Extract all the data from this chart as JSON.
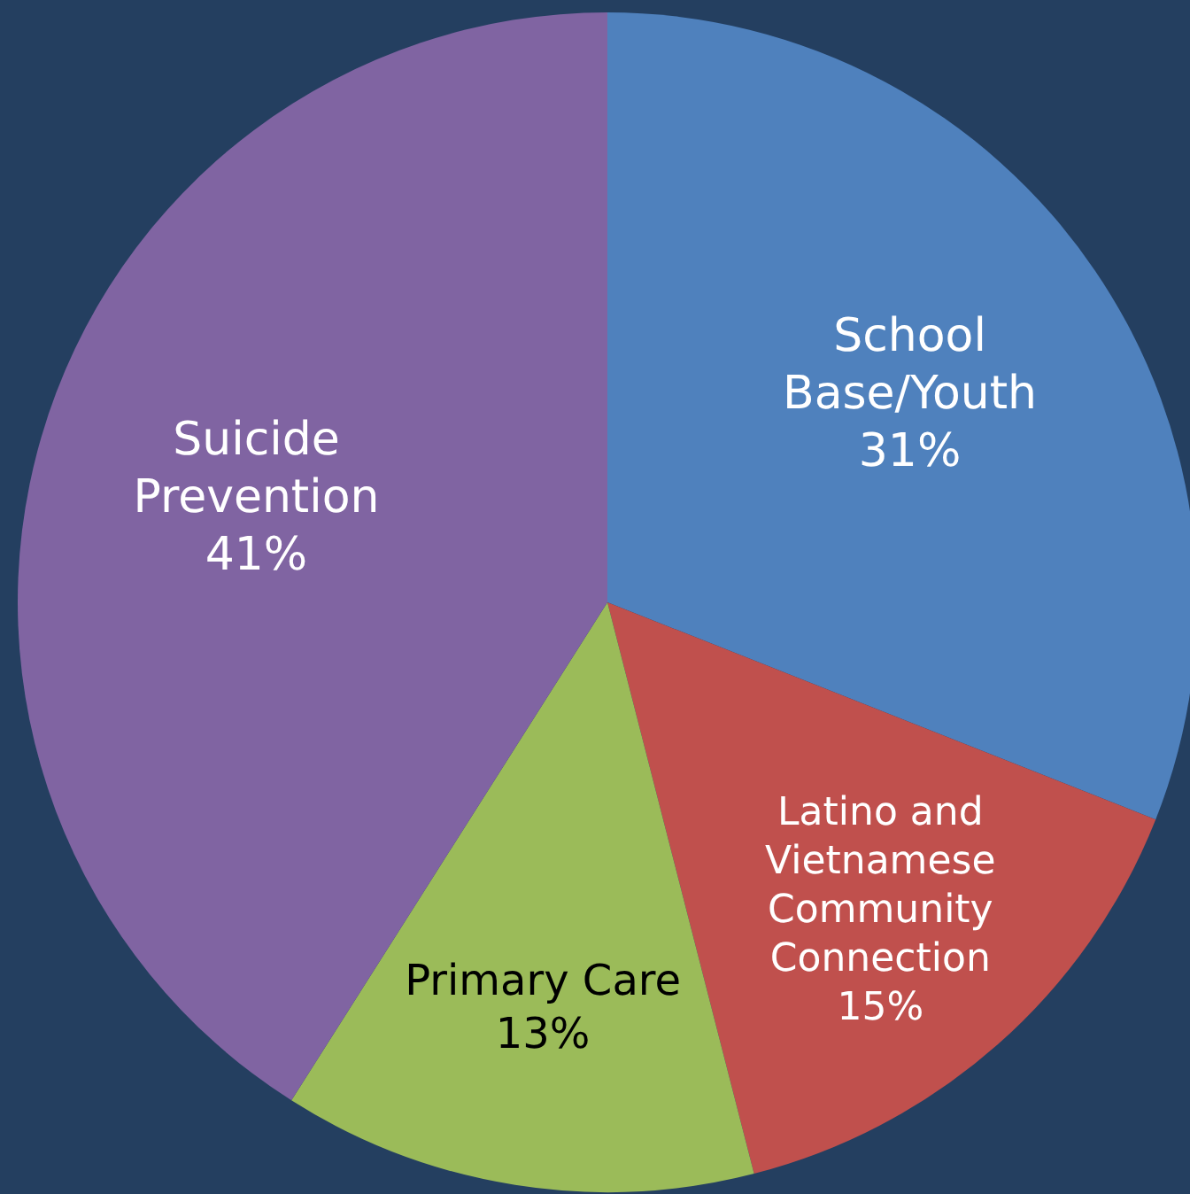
{
  "chart_data": {
    "type": "pie",
    "categories": [
      "School Base/Youth",
      "Latino and Vietnamese Community Connection",
      "Primary Care",
      "Suicide Prevention"
    ],
    "values": [
      31,
      15,
      13,
      41
    ],
    "value_labels": [
      "31%",
      "15%",
      "13%",
      "41%"
    ],
    "colors": [
      "#4f81bd",
      "#c0504d",
      "#9bbb59",
      "#8064a2"
    ],
    "legend": false
  }
}
